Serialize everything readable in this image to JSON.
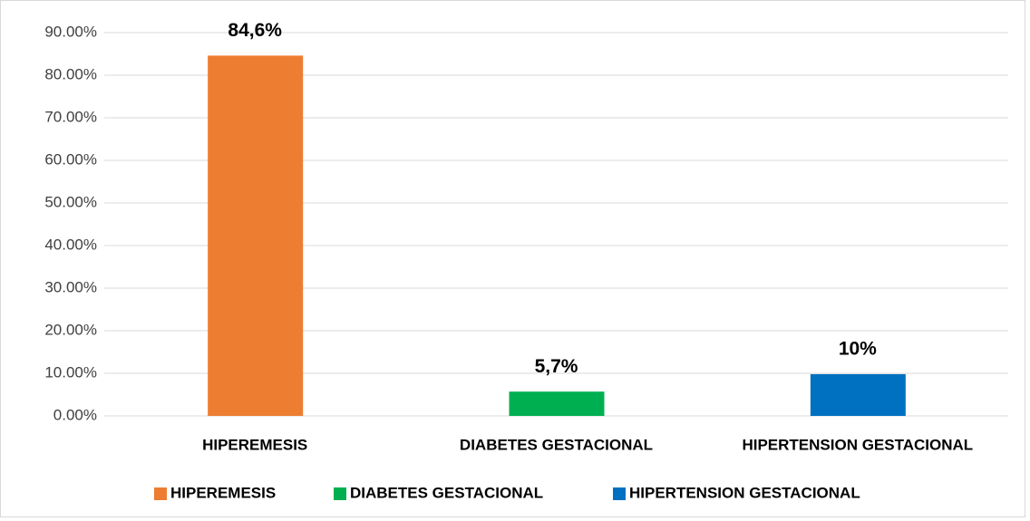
{
  "chart_data": {
    "type": "bar",
    "categories": [
      "HIPEREMESIS",
      "DIABETES GESTACIONAL",
      "HIPERTENSION GESTACIONAL"
    ],
    "values": [
      84.6,
      5.7,
      9.8
    ],
    "value_labels": [
      "84,6%",
      "5,7%",
      "10%"
    ],
    "colors": [
      "#ed7d31",
      "#00b050",
      "#0070c0"
    ],
    "ylim": [
      0,
      90
    ],
    "yticks": [
      {
        "value": 0,
        "label": "0.00%"
      },
      {
        "value": 10,
        "label": "10.00%"
      },
      {
        "value": 20,
        "label": "20.00%"
      },
      {
        "value": 30,
        "label": "30.00%"
      },
      {
        "value": 40,
        "label": "40.00%"
      },
      {
        "value": 50,
        "label": "50.00%"
      },
      {
        "value": 60,
        "label": "60.00%"
      },
      {
        "value": 70,
        "label": "70.00%"
      },
      {
        "value": 80,
        "label": "80.00%"
      },
      {
        "value": 90,
        "label": "90.00%"
      }
    ],
    "grid": true,
    "legend": "bottom"
  }
}
